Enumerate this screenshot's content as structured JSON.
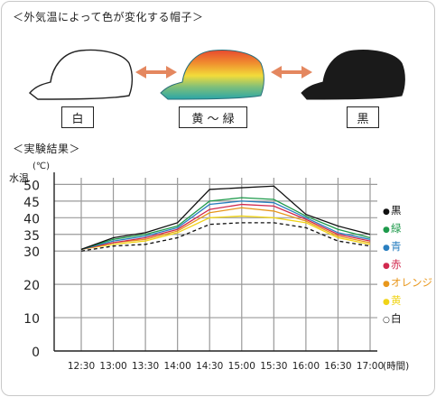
{
  "header": {
    "title": "＜外気温によって色が変化する帽子＞",
    "results_title": "＜実験結果＞"
  },
  "hats": {
    "left_label": "白",
    "middle_label": "黄 ～ 緑",
    "right_label": "黒"
  },
  "colors": {
    "arrow": "#e4875f",
    "hat_black": "#1a1a1a",
    "grid": "#9a9a9a",
    "axis": "#222222"
  },
  "chart_data": {
    "type": "line",
    "ylabel": "水温",
    "yunit": "(℃)",
    "xunit": "(時間)",
    "categories": [
      "12:30",
      "13:00",
      "13:30",
      "14:00",
      "14:30",
      "15:00",
      "15:30",
      "16:00",
      "16:30",
      "17:00"
    ],
    "ylim": [
      0,
      52
    ],
    "yticks": [
      0,
      10,
      20,
      30,
      35,
      40,
      45,
      50
    ],
    "grid": true,
    "legend_position": "right",
    "series": [
      {
        "name": "黒",
        "color": "#111111",
        "marker": "●",
        "dashed": false,
        "values": [
          30.5,
          34,
          35.5,
          38.5,
          48.5,
          49,
          49.5,
          41,
          37.5,
          35
        ]
      },
      {
        "name": "緑",
        "color": "#1e9a4b",
        "marker": "●",
        "dashed": false,
        "values": [
          30.5,
          33.5,
          35,
          37.5,
          45,
          46,
          45.5,
          40.5,
          36.5,
          34
        ]
      },
      {
        "name": "青",
        "color": "#2a7fc0",
        "marker": "●",
        "dashed": false,
        "values": [
          30.5,
          33,
          34.5,
          37,
          44,
          45,
          44.5,
          40,
          35.5,
          33.5
        ]
      },
      {
        "name": "赤",
        "color": "#d1294e",
        "marker": "●",
        "dashed": false,
        "values": [
          30.5,
          32.5,
          34,
          36.5,
          42.5,
          44,
          43.5,
          39.5,
          35,
          33
        ]
      },
      {
        "name": "オレンジ",
        "color": "#e8971c",
        "marker": "●",
        "dashed": false,
        "values": [
          30.5,
          32.5,
          33.5,
          36,
          41.5,
          43,
          42,
          39,
          34.5,
          32.5
        ]
      },
      {
        "name": "黄",
        "color": "#f0d418",
        "marker": "●",
        "dashed": false,
        "values": [
          30.5,
          32,
          33,
          35.5,
          40,
          40.5,
          40,
          38.5,
          34,
          32
        ]
      },
      {
        "name": "白",
        "color": "#111111",
        "marker": "○",
        "dashed": true,
        "values": [
          30,
          31.5,
          32,
          34,
          38,
          38.5,
          38.5,
          37,
          33,
          31.5
        ]
      }
    ]
  }
}
